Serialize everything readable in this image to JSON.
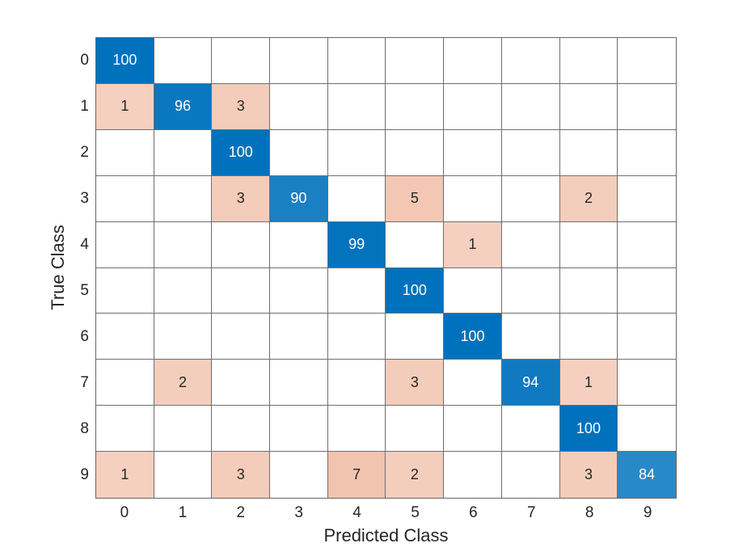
{
  "chart_data": {
    "type": "heatmap",
    "subtype": "confusion-matrix",
    "title": "",
    "xlabel": "Predicted Class",
    "ylabel": "True Class",
    "x_tick_labels": [
      "0",
      "1",
      "2",
      "3",
      "4",
      "5",
      "6",
      "7",
      "8",
      "9"
    ],
    "y_tick_labels": [
      "0",
      "1",
      "2",
      "3",
      "4",
      "5",
      "6",
      "7",
      "8",
      "9"
    ],
    "max_value": 100,
    "matrix": [
      [
        100,
        null,
        null,
        null,
        null,
        null,
        null,
        null,
        null,
        null
      ],
      [
        1,
        96,
        3,
        null,
        null,
        null,
        null,
        null,
        null,
        null
      ],
      [
        null,
        null,
        100,
        null,
        null,
        null,
        null,
        null,
        null,
        null
      ],
      [
        null,
        null,
        3,
        90,
        null,
        5,
        null,
        null,
        2,
        null
      ],
      [
        null,
        null,
        null,
        null,
        99,
        null,
        1,
        null,
        null,
        null
      ],
      [
        null,
        null,
        null,
        null,
        null,
        100,
        null,
        null,
        null,
        null
      ],
      [
        null,
        null,
        null,
        null,
        null,
        null,
        100,
        null,
        null,
        null
      ],
      [
        null,
        2,
        null,
        null,
        null,
        3,
        null,
        94,
        1,
        null
      ],
      [
        null,
        null,
        null,
        null,
        null,
        null,
        null,
        null,
        100,
        null
      ],
      [
        1,
        null,
        3,
        null,
        7,
        2,
        null,
        null,
        3,
        84
      ]
    ],
    "colors": {
      "diagonal": "#0072BD",
      "off_diagonal": "#D95319",
      "empty_cell": "#FFFFFF",
      "grid_line": "#6E6E6E",
      "cell_text_on_blue": "#FFFFFF",
      "cell_text_on_pink": "#262626",
      "axis_text": "#262626"
    },
    "layout": {
      "grid_on": true,
      "legend": "none"
    }
  }
}
